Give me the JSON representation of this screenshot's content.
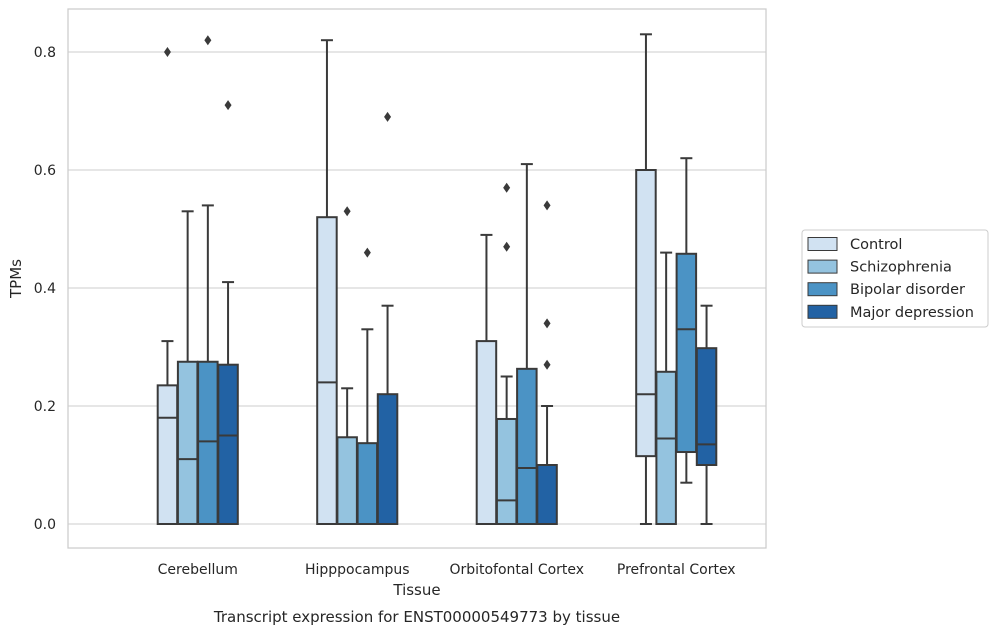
{
  "chart_data": {
    "type": "box",
    "xlabel": "Tissue",
    "ylabel": "TPMs",
    "caption": "Transcript expression for ENST00000549773 by tissue",
    "ylim": [
      -0.04,
      0.875
    ],
    "yticks": [
      0.0,
      0.2,
      0.4,
      0.6,
      0.8
    ],
    "ytick_labels": [
      "0.0",
      "0.2",
      "0.4",
      "0.6",
      "0.8"
    ],
    "grid": "horizontal",
    "legend_position": "right",
    "categories": [
      "Cerebellum",
      "Hipppocampus",
      "Orbitofontal Cortex",
      "Prefrontal Cortex"
    ],
    "colors": {
      "Control": "#d1e2f2",
      "Schizophrenia": "#94c3df",
      "Bipolar disorder": "#4b93c5",
      "Major depression": "#2262a4"
    },
    "series": [
      {
        "name": "Control",
        "boxes": [
          {
            "whislo": 0.0,
            "q1": 0.0,
            "med": 0.18,
            "q3": 0.235,
            "whishi": 0.31,
            "fliers": [
              0.8
            ]
          },
          {
            "whislo": 0.0,
            "q1": 0.0,
            "med": 0.24,
            "q3": 0.52,
            "whishi": 0.82,
            "fliers": []
          },
          {
            "whislo": 0.0,
            "q1": 0.0,
            "med": 0.0,
            "q3": 0.31,
            "whishi": 0.49,
            "fliers": []
          },
          {
            "whislo": 0.0,
            "q1": 0.115,
            "med": 0.22,
            "q3": 0.6,
            "whishi": 0.83,
            "fliers": []
          }
        ]
      },
      {
        "name": "Schizophrenia",
        "boxes": [
          {
            "whislo": 0.0,
            "q1": 0.0,
            "med": 0.11,
            "q3": 0.275,
            "whishi": 0.53,
            "fliers": []
          },
          {
            "whislo": 0.0,
            "q1": 0.0,
            "med": 0.0,
            "q3": 0.147,
            "whishi": 0.23,
            "fliers": [
              0.53
            ]
          },
          {
            "whislo": 0.0,
            "q1": 0.0,
            "med": 0.04,
            "q3": 0.178,
            "whishi": 0.25,
            "fliers": [
              0.57,
              0.47
            ]
          },
          {
            "whislo": 0.0,
            "q1": 0.0,
            "med": 0.145,
            "q3": 0.258,
            "whishi": 0.46,
            "fliers": []
          }
        ]
      },
      {
        "name": "Bipolar disorder",
        "boxes": [
          {
            "whislo": 0.0,
            "q1": 0.0,
            "med": 0.14,
            "q3": 0.275,
            "whishi": 0.54,
            "fliers": [
              0.82
            ]
          },
          {
            "whislo": 0.0,
            "q1": 0.0,
            "med": 0.0,
            "q3": 0.137,
            "whishi": 0.33,
            "fliers": [
              0.46
            ]
          },
          {
            "whislo": 0.0,
            "q1": 0.0,
            "med": 0.095,
            "q3": 0.263,
            "whishi": 0.61,
            "fliers": []
          },
          {
            "whislo": 0.07,
            "q1": 0.122,
            "med": 0.33,
            "q3": 0.458,
            "whishi": 0.62,
            "fliers": []
          }
        ]
      },
      {
        "name": "Major depression",
        "boxes": [
          {
            "whislo": 0.0,
            "q1": 0.0,
            "med": 0.15,
            "q3": 0.27,
            "whishi": 0.41,
            "fliers": [
              0.71
            ]
          },
          {
            "whislo": 0.0,
            "q1": 0.0,
            "med": 0.0,
            "q3": 0.22,
            "whishi": 0.37,
            "fliers": [
              0.69
            ]
          },
          {
            "whislo": 0.0,
            "q1": 0.0,
            "med": 0.0,
            "q3": 0.1,
            "whishi": 0.2,
            "fliers": [
              0.54,
              0.34,
              0.27
            ]
          },
          {
            "whislo": 0.0,
            "q1": 0.1,
            "med": 0.135,
            "q3": 0.298,
            "whishi": 0.37,
            "fliers": []
          }
        ]
      }
    ]
  }
}
